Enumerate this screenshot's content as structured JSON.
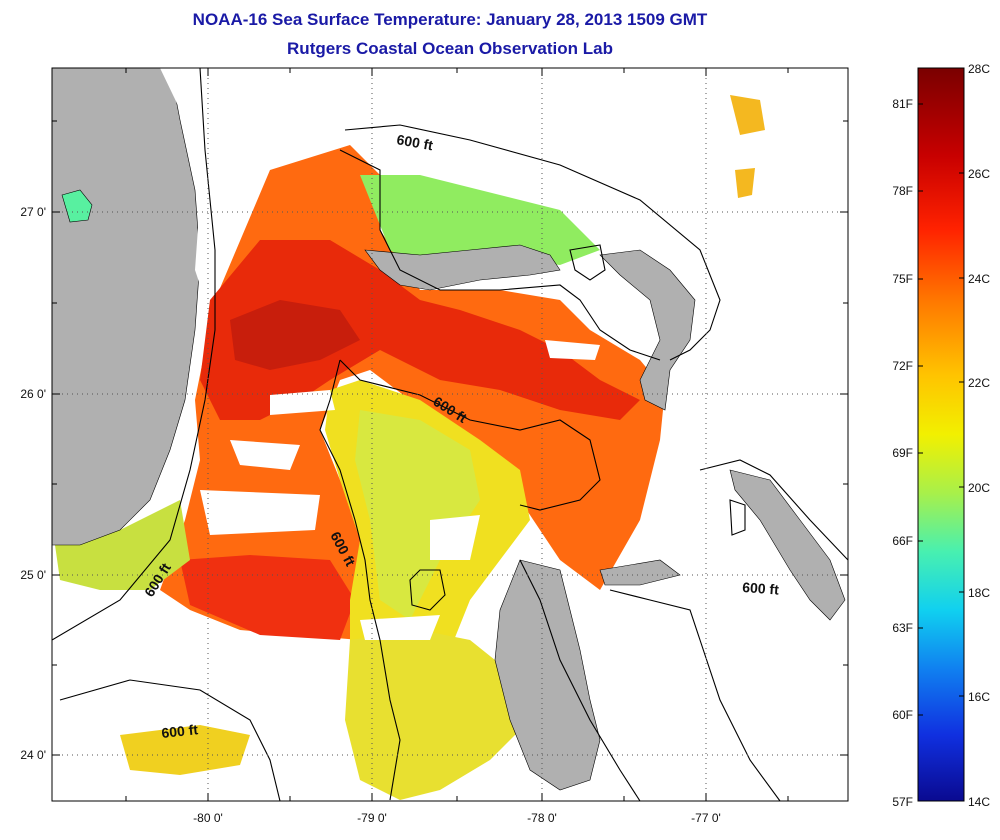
{
  "title": {
    "line1": "NOAA-16 Sea Surface Temperature:  January 28, 2013 1509 GMT",
    "line2": "Rutgers Coastal Ocean Observation Lab"
  },
  "axes": {
    "x_ticks": [
      "-80 0'",
      "-79 0'",
      "-78 0'",
      "-77 0'"
    ],
    "y_ticks": [
      "27 0'",
      "26 0'",
      "25 0'",
      "24 0'"
    ]
  },
  "contour_labels": [
    "600 ft",
    "600 ft",
    "600 ft",
    "600 ft",
    "600 ft",
    "600 ft"
  ],
  "colorbar": {
    "fahrenheit_labels": [
      "81F",
      "78F",
      "75F",
      "72F",
      "69F",
      "66F",
      "63F",
      "60F",
      "57F"
    ],
    "celsius_labels": [
      "28C",
      "26C",
      "24C",
      "22C",
      "20C",
      "18C",
      "16C",
      "14C"
    ],
    "colors": [
      "#7a0000",
      "#c80000",
      "#ff2200",
      "#ff7a00",
      "#ffc400",
      "#f2f000",
      "#a8f04a",
      "#48f0b0",
      "#10d0f0",
      "#1080f0",
      "#1030e0",
      "#0a0a90"
    ]
  },
  "colors": {
    "land": "#b0b0b0",
    "title": "#1a1aa6",
    "contour": "#000000"
  }
}
